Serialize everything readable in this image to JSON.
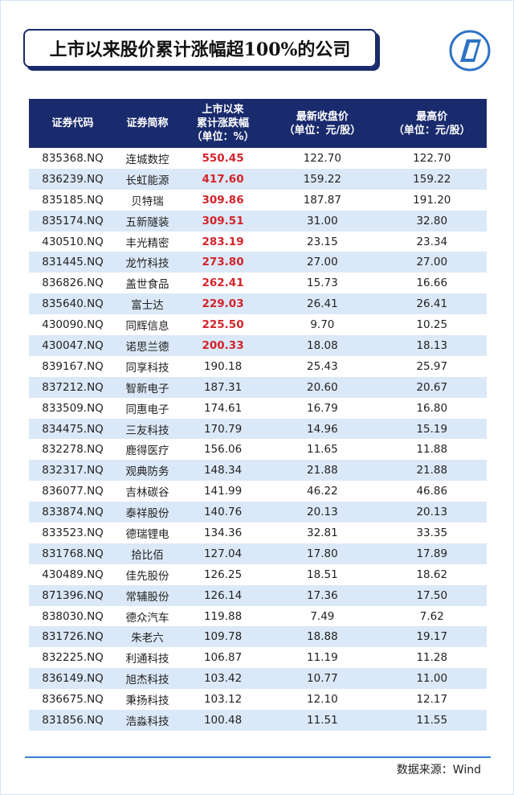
{
  "title": "上市以来股价累计涨幅超100%的公司",
  "table": {
    "header": [
      [
        "证券代码"
      ],
      [
        "证券简称"
      ],
      [
        "上市以来",
        "累计涨跌幅",
        "（单位：%）"
      ],
      [
        "最新收盘价",
        "（单位：元/股）"
      ],
      [
        "最高价",
        "（单位：元/股）"
      ]
    ],
    "rows": [
      [
        "835368.NQ",
        "连城数控",
        "550.45",
        "122.70",
        "122.70"
      ],
      [
        "836239.NQ",
        "长虹能源",
        "417.60",
        "159.22",
        "159.22"
      ],
      [
        "835185.NQ",
        "贝特瑞",
        "309.86",
        "187.87",
        "191.20"
      ],
      [
        "835174.NQ",
        "五新隧装",
        "309.51",
        "31.00",
        "32.80"
      ],
      [
        "430510.NQ",
        "丰光精密",
        "283.19",
        "23.15",
        "23.34"
      ],
      [
        "831445.NQ",
        "龙竹科技",
        "273.80",
        "27.00",
        "27.00"
      ],
      [
        "836826.NQ",
        "盖世食品",
        "262.41",
        "15.73",
        "16.66"
      ],
      [
        "835640.NQ",
        "富士达",
        "229.03",
        "26.41",
        "26.41"
      ],
      [
        "430090.NQ",
        "同辉信息",
        "225.50",
        "9.70",
        "10.25"
      ],
      [
        "430047.NQ",
        "诺思兰德",
        "200.33",
        "18.08",
        "18.13"
      ],
      [
        "839167.NQ",
        "同享科技",
        "190.18",
        "25.43",
        "25.97"
      ],
      [
        "837212.NQ",
        "智新电子",
        "187.31",
        "20.60",
        "20.67"
      ],
      [
        "833509.NQ",
        "同惠电子",
        "174.61",
        "16.79",
        "16.80"
      ],
      [
        "834475.NQ",
        "三友科技",
        "170.79",
        "14.96",
        "15.19"
      ],
      [
        "832278.NQ",
        "鹿得医疗",
        "156.06",
        "11.65",
        "11.88"
      ],
      [
        "832317.NQ",
        "观典防务",
        "148.34",
        "21.88",
        "21.88"
      ],
      [
        "836077.NQ",
        "吉林碳谷",
        "141.99",
        "46.22",
        "46.86"
      ],
      [
        "833874.NQ",
        "泰祥股份",
        "140.76",
        "20.13",
        "20.13"
      ],
      [
        "833523.NQ",
        "德瑞锂电",
        "134.36",
        "32.81",
        "33.35"
      ],
      [
        "831768.NQ",
        "拾比佰",
        "127.04",
        "17.80",
        "17.89"
      ],
      [
        "430489.NQ",
        "佳先股份",
        "126.25",
        "18.51",
        "18.62"
      ],
      [
        "871396.NQ",
        "常辅股份",
        "126.14",
        "17.36",
        "17.50"
      ],
      [
        "838030.NQ",
        "德众汽车",
        "119.88",
        "7.49",
        "7.62"
      ],
      [
        "831726.NQ",
        "朱老六",
        "109.78",
        "18.88",
        "19.17"
      ],
      [
        "832225.NQ",
        "利通科技",
        "106.87",
        "11.19",
        "11.28"
      ],
      [
        "836149.NQ",
        "旭杰科技",
        "103.42",
        "10.77",
        "11.00"
      ],
      [
        "836675.NQ",
        "秉扬科技",
        "103.12",
        "12.10",
        "12.17"
      ],
      [
        "831856.NQ",
        "浩淼科技",
        "100.48",
        "11.51",
        "11.55"
      ]
    ]
  },
  "source": "数据来源：Wind"
}
